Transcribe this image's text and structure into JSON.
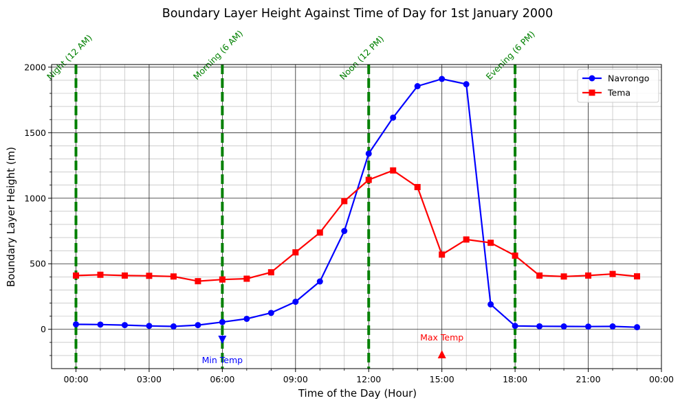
{
  "chart_data": {
    "type": "line",
    "title": "Boundary Layer Height Against Time of Day for 1st January 2000",
    "xlabel": "Time of the Day (Hour)",
    "ylabel": "Boundary Layer Height (m)",
    "xlim": [
      -1,
      24
    ],
    "ylim": [
      -300,
      2020
    ],
    "x_ticks": [
      0,
      3,
      6,
      9,
      12,
      15,
      18,
      21,
      24
    ],
    "x_tick_labels": [
      "00:00",
      "03:00",
      "06:00",
      "09:00",
      "12:00",
      "15:00",
      "18:00",
      "21:00",
      "00:00"
    ],
    "y_ticks": [
      0,
      500,
      1000,
      1500,
      2000
    ],
    "y_tick_labels": [
      "0",
      "500",
      "1000",
      "1500",
      "2000"
    ],
    "grid": {
      "major": true,
      "minor": true
    },
    "legend_position": "top-right",
    "x": [
      0,
      1,
      2,
      3,
      4,
      5,
      6,
      7,
      8,
      9,
      10,
      11,
      12,
      13,
      14,
      15,
      16,
      17,
      18,
      19,
      20,
      21,
      22,
      23
    ],
    "series": [
      {
        "name": "Navrongo",
        "color": "#0000ff",
        "marker": "circle",
        "values": [
          38,
          36,
          32,
          26,
          22,
          32,
          55,
          80,
          125,
          210,
          365,
          750,
          1340,
          1615,
          1855,
          1910,
          1870,
          190,
          26,
          23,
          22,
          21,
          22,
          16
        ]
      },
      {
        "name": "Tema",
        "color": "#ff0000",
        "marker": "square",
        "values": [
          410,
          416,
          410,
          408,
          403,
          367,
          380,
          386,
          435,
          587,
          738,
          978,
          1140,
          1212,
          1085,
          570,
          685,
          660,
          562,
          410,
          403,
          410,
          422,
          404
        ]
      }
    ],
    "vertical_lines": [
      {
        "x": 0,
        "label": "Night (12 AM)",
        "color": "#008000"
      },
      {
        "x": 6,
        "label": "Morning (6 AM)",
        "color": "#008000"
      },
      {
        "x": 12,
        "label": "Noon (12 PM)",
        "color": "#008000"
      },
      {
        "x": 18,
        "label": "Evening (6 PM)",
        "color": "#008000"
      }
    ],
    "annotations": [
      {
        "x": 6,
        "y": -80,
        "marker": "triangle-down",
        "label": "Min Temp",
        "color": "#0000ff"
      },
      {
        "x": 15,
        "y": -190,
        "marker": "triangle-up",
        "label": "Max Temp",
        "color": "#ff0000"
      }
    ]
  }
}
